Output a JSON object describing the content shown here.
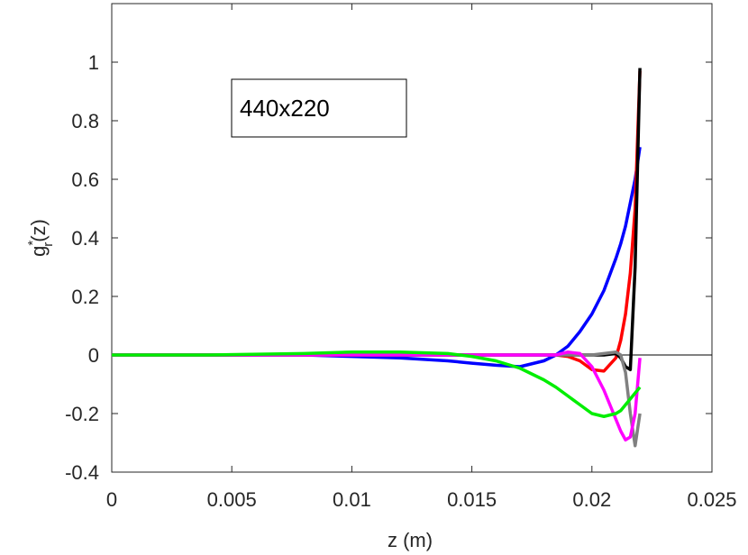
{
  "chart_data": {
    "type": "line",
    "annotation": "440x220",
    "xlabel": "z   (m)",
    "ylabel": {
      "base": "g",
      "sup": "*",
      "sub": "r",
      "tail": "(z)"
    },
    "x": [
      0,
      0.004,
      0.008,
      0.01,
      0.012,
      0.014,
      0.015,
      0.016,
      0.017,
      0.018,
      0.0185,
      0.019,
      0.0195,
      0.02,
      0.0205,
      0.021,
      0.0212,
      0.0214,
      0.0216,
      0.0218,
      0.022
    ],
    "series": [
      {
        "color": "#0000ff",
        "values": [
          0,
          0,
          0,
          -0.005,
          -0.01,
          -0.02,
          -0.028,
          -0.035,
          -0.04,
          -0.02,
          0,
          0.03,
          0.08,
          0.14,
          0.22,
          0.33,
          0.38,
          0.44,
          0.52,
          0.6,
          0.71
        ]
      },
      {
        "color": "#ff0000",
        "values": [
          0,
          0,
          0,
          0,
          0,
          0,
          0,
          0,
          0,
          0,
          0,
          -0.005,
          -0.02,
          -0.05,
          -0.055,
          -0.01,
          0.05,
          0.14,
          0.28,
          0.5,
          0.97
        ]
      },
      {
        "color": "#000000",
        "values": [
          0,
          0,
          0,
          0,
          0,
          0,
          0,
          0,
          0,
          0,
          0,
          0,
          0,
          0,
          0,
          0.005,
          -0.01,
          -0.04,
          -0.05,
          0.3,
          0.98
        ]
      },
      {
        "color": "#808080",
        "values": [
          0,
          0,
          0,
          0,
          0,
          0,
          0,
          0,
          0,
          0,
          0,
          0,
          0,
          0,
          0.005,
          0.01,
          0,
          -0.06,
          -0.2,
          -0.31,
          -0.2
        ]
      },
      {
        "color": "#ff00ff",
        "values": [
          0,
          0,
          0,
          0,
          0,
          0,
          0,
          0,
          0,
          0,
          0,
          0.01,
          0.005,
          -0.04,
          -0.12,
          -0.22,
          -0.26,
          -0.29,
          -0.28,
          -0.2,
          -0.01
        ]
      },
      {
        "color": "#00ee00",
        "values": [
          0,
          0,
          0.005,
          0.01,
          0.01,
          0.005,
          -0.005,
          -0.02,
          -0.045,
          -0.085,
          -0.11,
          -0.14,
          -0.17,
          -0.2,
          -0.21,
          -0.2,
          -0.19,
          -0.17,
          -0.15,
          -0.13,
          -0.11
        ]
      }
    ],
    "hline": 0,
    "xlim": [
      0,
      0.025
    ],
    "xticks": [
      0,
      0.005,
      0.01,
      0.015,
      0.02,
      0.025
    ],
    "ylim": [
      -0.4,
      1.2
    ],
    "yticks": [
      -0.4,
      -0.2,
      0,
      0.2,
      0.4,
      0.6,
      0.8,
      1
    ]
  }
}
